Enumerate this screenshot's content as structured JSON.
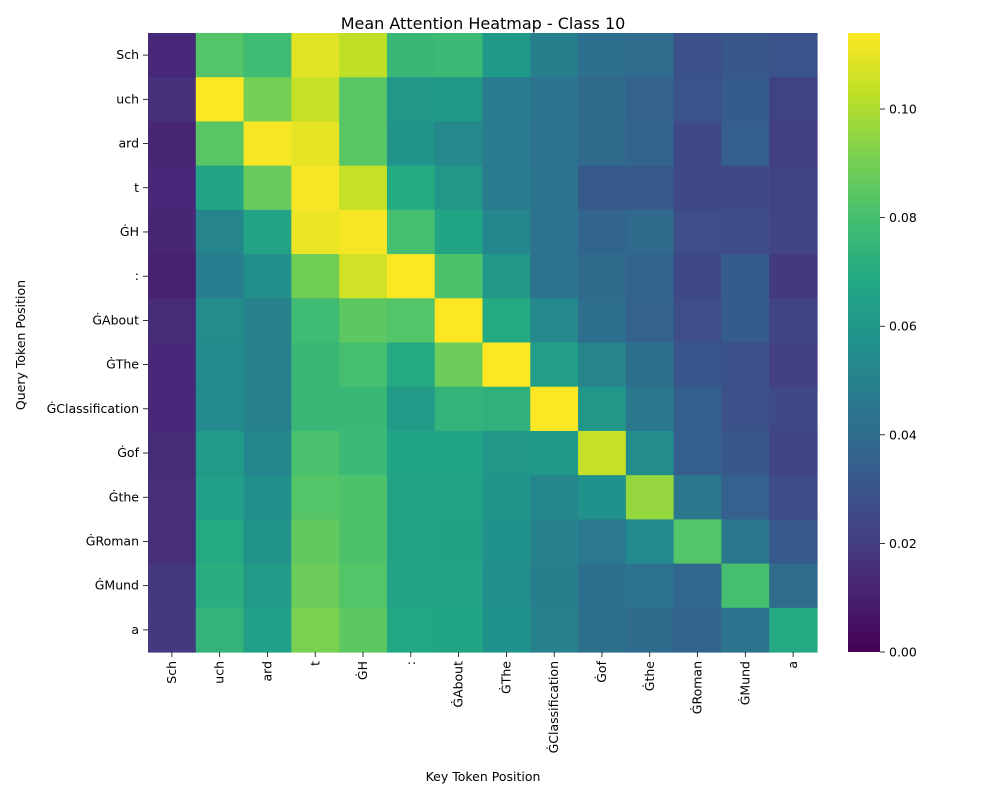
{
  "chart_data": {
    "type": "heatmap",
    "title": "Mean Attention Heatmap - Class 10",
    "xlabel": "Key Token Position",
    "ylabel": "Query Token Position",
    "x_labels": [
      "Sch",
      "uch",
      "ard",
      "t",
      "ĠH",
      ":",
      "ĠAbout",
      "ĠThe",
      "ĠClassification",
      "Ġof",
      "Ġthe",
      "ĠRoman",
      "ĠMund",
      "a"
    ],
    "y_labels": [
      "Sch",
      "uch",
      "ard",
      "t",
      "ĠH",
      ":",
      "ĠAbout",
      "ĠThe",
      "ĠClassification",
      "Ġof",
      "Ġthe",
      "ĠRoman",
      "ĠMund",
      "a"
    ],
    "values": [
      [
        0.013,
        0.083,
        0.078,
        0.109,
        0.103,
        0.076,
        0.077,
        0.061,
        0.049,
        0.041,
        0.04,
        0.028,
        0.031,
        0.029
      ],
      [
        0.016,
        0.114,
        0.09,
        0.104,
        0.084,
        0.06,
        0.061,
        0.047,
        0.044,
        0.039,
        0.036,
        0.029,
        0.033,
        0.022
      ],
      [
        0.012,
        0.084,
        0.113,
        0.11,
        0.084,
        0.058,
        0.053,
        0.047,
        0.043,
        0.039,
        0.037,
        0.025,
        0.034,
        0.021
      ],
      [
        0.013,
        0.066,
        0.087,
        0.113,
        0.104,
        0.069,
        0.06,
        0.047,
        0.044,
        0.032,
        0.032,
        0.025,
        0.025,
        0.022
      ],
      [
        0.012,
        0.051,
        0.066,
        0.111,
        0.113,
        0.08,
        0.067,
        0.052,
        0.043,
        0.037,
        0.039,
        0.027,
        0.026,
        0.023
      ],
      [
        0.01,
        0.048,
        0.056,
        0.089,
        0.106,
        0.114,
        0.082,
        0.06,
        0.043,
        0.039,
        0.037,
        0.025,
        0.033,
        0.019
      ],
      [
        0.014,
        0.055,
        0.05,
        0.078,
        0.085,
        0.083,
        0.114,
        0.069,
        0.053,
        0.041,
        0.036,
        0.027,
        0.033,
        0.023
      ],
      [
        0.013,
        0.054,
        0.05,
        0.076,
        0.08,
        0.069,
        0.088,
        0.114,
        0.063,
        0.051,
        0.042,
        0.03,
        0.028,
        0.021
      ],
      [
        0.013,
        0.054,
        0.05,
        0.076,
        0.076,
        0.062,
        0.074,
        0.073,
        0.114,
        0.06,
        0.045,
        0.034,
        0.028,
        0.025
      ],
      [
        0.014,
        0.062,
        0.052,
        0.081,
        0.077,
        0.067,
        0.067,
        0.06,
        0.061,
        0.104,
        0.055,
        0.034,
        0.031,
        0.023
      ],
      [
        0.015,
        0.064,
        0.056,
        0.083,
        0.082,
        0.066,
        0.066,
        0.059,
        0.052,
        0.057,
        0.096,
        0.045,
        0.035,
        0.026
      ],
      [
        0.015,
        0.069,
        0.058,
        0.086,
        0.082,
        0.066,
        0.065,
        0.057,
        0.05,
        0.046,
        0.054,
        0.083,
        0.045,
        0.032
      ],
      [
        0.018,
        0.071,
        0.062,
        0.088,
        0.083,
        0.066,
        0.066,
        0.056,
        0.049,
        0.042,
        0.043,
        0.038,
        0.08,
        0.04
      ],
      [
        0.019,
        0.074,
        0.064,
        0.091,
        0.085,
        0.068,
        0.067,
        0.057,
        0.05,
        0.042,
        0.039,
        0.037,
        0.044,
        0.069
      ]
    ],
    "zlim": [
      0.0,
      0.114
    ],
    "colormap": "viridis",
    "colorbar_ticks": [
      "0.00",
      "0.02",
      "0.04",
      "0.06",
      "0.08",
      "0.10"
    ],
    "colorbar_tick_values": [
      0.0,
      0.02,
      0.04,
      0.06,
      0.08,
      0.1
    ],
    "grid": false
  }
}
